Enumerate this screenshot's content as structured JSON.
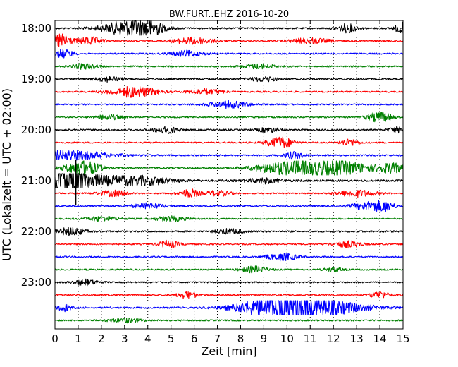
{
  "chart_data": {
    "type": "line",
    "title": "BW.FURT..EHZ 2016-10-20",
    "xlabel": "Zeit  [min]",
    "ylabel": "UTC (Lokalzeit = UTC + 02:00)",
    "xlim": [
      0,
      15
    ],
    "x_ticks": [
      "0",
      "1",
      "2",
      "3",
      "4",
      "5",
      "6",
      "7",
      "8",
      "9",
      "10",
      "11",
      "12",
      "13",
      "14",
      "15"
    ],
    "y_ticks": [
      "18:00",
      "19:00",
      "20:00",
      "21:00",
      "22:00",
      "23:00"
    ],
    "grid": "vertical dotted",
    "trace_colors": [
      "#000000",
      "#ff0000",
      "#0000ff",
      "#008000"
    ],
    "series": [
      {
        "start": "18:00",
        "color": "#000000",
        "base": 0.25,
        "bursts": [
          [
            3.2,
            0.8,
            2.2
          ],
          [
            4.1,
            0.4,
            1.6
          ],
          [
            12.6,
            0.3,
            1.2
          ],
          [
            15.0,
            0.25,
            1.6
          ]
        ]
      },
      {
        "start": "18:15",
        "color": "#ff0000",
        "base": 0.22,
        "bursts": [
          [
            0.3,
            0.25,
            2.6
          ],
          [
            1.5,
            0.4,
            1.1
          ],
          [
            6.0,
            0.6,
            1.0
          ],
          [
            11.0,
            0.6,
            0.8
          ]
        ]
      },
      {
        "start": "18:30",
        "color": "#0000ff",
        "base": 0.22,
        "bursts": [
          [
            0.4,
            0.3,
            1.2
          ],
          [
            5.7,
            0.5,
            0.8
          ]
        ]
      },
      {
        "start": "18:45",
        "color": "#008000",
        "base": 0.22,
        "bursts": [
          [
            1.3,
            0.4,
            0.8
          ],
          [
            8.8,
            0.5,
            0.7
          ]
        ]
      },
      {
        "start": "19:00",
        "color": "#000000",
        "base": 0.25,
        "bursts": [
          [
            2.3,
            0.4,
            0.7
          ],
          [
            9.0,
            0.4,
            0.7
          ]
        ]
      },
      {
        "start": "19:15",
        "color": "#ff0000",
        "base": 0.22,
        "bursts": [
          [
            3.4,
            0.7,
            1.6
          ],
          [
            6.5,
            0.5,
            0.8
          ]
        ]
      },
      {
        "start": "19:30",
        "color": "#0000ff",
        "base": 0.22,
        "bursts": [
          [
            7.5,
            0.6,
            1.0
          ]
        ]
      },
      {
        "start": "19:45",
        "color": "#008000",
        "base": 0.22,
        "bursts": [
          [
            2.3,
            0.4,
            0.7
          ],
          [
            14.0,
            0.4,
            1.4
          ]
        ]
      },
      {
        "start": "20:00",
        "color": "#000000",
        "base": 0.25,
        "bursts": [
          [
            4.8,
            0.4,
            0.9
          ],
          [
            9.2,
            0.3,
            0.7
          ],
          [
            14.8,
            0.3,
            0.8
          ]
        ]
      },
      {
        "start": "20:15",
        "color": "#ff0000",
        "base": 0.22,
        "bursts": [
          [
            9.7,
            0.4,
            1.6
          ],
          [
            12.7,
            0.3,
            0.9
          ]
        ]
      },
      {
        "start": "20:30",
        "color": "#0000ff",
        "base": 0.25,
        "bursts": [
          [
            0.6,
            1.2,
            1.3
          ],
          [
            10.3,
            0.3,
            0.9
          ]
        ]
      },
      {
        "start": "20:45",
        "color": "#008000",
        "base": 0.25,
        "bursts": [
          [
            1.2,
            0.5,
            2.2
          ],
          [
            9.6,
            0.8,
            1.2
          ],
          [
            11.0,
            1.0,
            1.4
          ],
          [
            12.5,
            0.8,
            1.5
          ],
          [
            14.5,
            0.5,
            1.3
          ]
        ]
      },
      {
        "start": "21:00",
        "color": "#000000",
        "base": 0.3,
        "bursts": [
          [
            0.6,
            0.5,
            4.0
          ],
          [
            1.8,
            1.5,
            1.3
          ],
          [
            4.0,
            0.8,
            0.8
          ],
          [
            9.0,
            0.5,
            0.7
          ]
        ]
      },
      {
        "start": "21:15",
        "color": "#ff0000",
        "base": 0.2,
        "bursts": [
          [
            2.5,
            0.5,
            0.8
          ],
          [
            5.8,
            0.3,
            1.2
          ],
          [
            7.0,
            0.4,
            0.8
          ],
          [
            13.0,
            0.6,
            1.0
          ]
        ]
      },
      {
        "start": "21:30",
        "color": "#0000ff",
        "base": 0.22,
        "bursts": [
          [
            4.0,
            0.5,
            0.8
          ],
          [
            13.5,
            0.5,
            1.1
          ],
          [
            14.2,
            0.3,
            1.2
          ]
        ]
      },
      {
        "start": "21:45",
        "color": "#008000",
        "base": 0.2,
        "bursts": [
          [
            2.0,
            0.5,
            0.7
          ],
          [
            5.0,
            0.5,
            0.7
          ]
        ]
      },
      {
        "start": "22:00",
        "color": "#000000",
        "base": 0.25,
        "bursts": [
          [
            0.7,
            0.4,
            1.2
          ],
          [
            7.5,
            0.4,
            0.7
          ]
        ]
      },
      {
        "start": "22:15",
        "color": "#ff0000",
        "base": 0.22,
        "bursts": [
          [
            4.9,
            0.3,
            1.0
          ],
          [
            12.6,
            0.4,
            1.0
          ]
        ]
      },
      {
        "start": "22:30",
        "color": "#0000ff",
        "base": 0.22,
        "bursts": [
          [
            9.8,
            0.5,
            1.0
          ]
        ]
      },
      {
        "start": "22:45",
        "color": "#008000",
        "base": 0.22,
        "bursts": [
          [
            8.6,
            0.4,
            0.9
          ],
          [
            12.0,
            0.3,
            0.6
          ]
        ]
      },
      {
        "start": "23:00",
        "color": "#000000",
        "base": 0.22,
        "bursts": [
          [
            1.3,
            0.4,
            0.8
          ]
        ]
      },
      {
        "start": "23:15",
        "color": "#ff0000",
        "base": 0.22,
        "bursts": [
          [
            5.7,
            0.3,
            1.0
          ],
          [
            14.0,
            0.3,
            0.9
          ]
        ]
      },
      {
        "start": "23:30",
        "color": "#0000ff",
        "base": 0.25,
        "bursts": [
          [
            0.4,
            0.2,
            1.1
          ],
          [
            9.8,
            1.2,
            3.8
          ],
          [
            11.8,
            1.3,
            1.5
          ]
        ]
      },
      {
        "start": "23:45",
        "color": "#008000",
        "base": 0.22,
        "bursts": [
          [
            3.0,
            0.5,
            0.6
          ]
        ]
      }
    ]
  }
}
